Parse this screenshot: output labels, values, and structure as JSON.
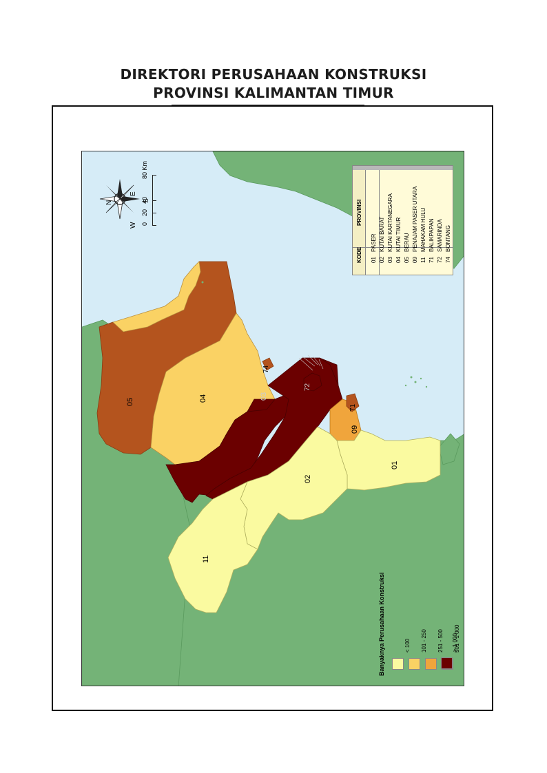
{
  "title": {
    "line1": "DIREKTORI PERUSAHAAN KONSTRUKSI",
    "line2": "PROVINSI KALIMANTAN TIMUR"
  },
  "map": {
    "background_color": "#d6ecf7",
    "land_color": "#74b377",
    "region_labels": [
      "05",
      "04",
      "03",
      "74",
      "72",
      "71",
      "09",
      "01",
      "02",
      "11"
    ]
  },
  "code_table": {
    "headers": {
      "code": "KODE",
      "province": "PROVINSI"
    },
    "rows": [
      {
        "code": "01",
        "name": "PASER"
      },
      {
        "code": "02",
        "name": "KUTAI BARAT"
      },
      {
        "code": "03",
        "name": "KUTAI KARTANEGARA"
      },
      {
        "code": "04",
        "name": "KUTAI TIMUR"
      },
      {
        "code": "05",
        "name": "BERAU"
      },
      {
        "code": "09",
        "name": "PENAJAM PASER UTARA"
      },
      {
        "code": "11",
        "name": "MAHAKAM HULU"
      },
      {
        "code": "71",
        "name": "BALIKPAPAN"
      },
      {
        "code": "72",
        "name": "SAMARINDA"
      },
      {
        "code": "74",
        "name": "BONTANG"
      }
    ]
  },
  "scale_bar": {
    "ticks": [
      "0",
      "20",
      "40",
      "80 Km"
    ]
  },
  "compass": {
    "icon": "compass-rose-icon",
    "n": "N",
    "e": "E",
    "s": "S",
    "w": "W"
  },
  "legend": {
    "title": "Banyaknya Perusahaan Konstruksi",
    "items": [
      {
        "label": "< 100",
        "color": "#fafaa0"
      },
      {
        "label": "101 - 250",
        "color": "#fad264"
      },
      {
        "label": "251 - 500",
        "color": "#f0a53c"
      },
      {
        "label": "501 - 1 000",
        "color": "#b4541e"
      },
      {
        "label": "> 1 000",
        "color": "#6b0000"
      }
    ]
  }
}
